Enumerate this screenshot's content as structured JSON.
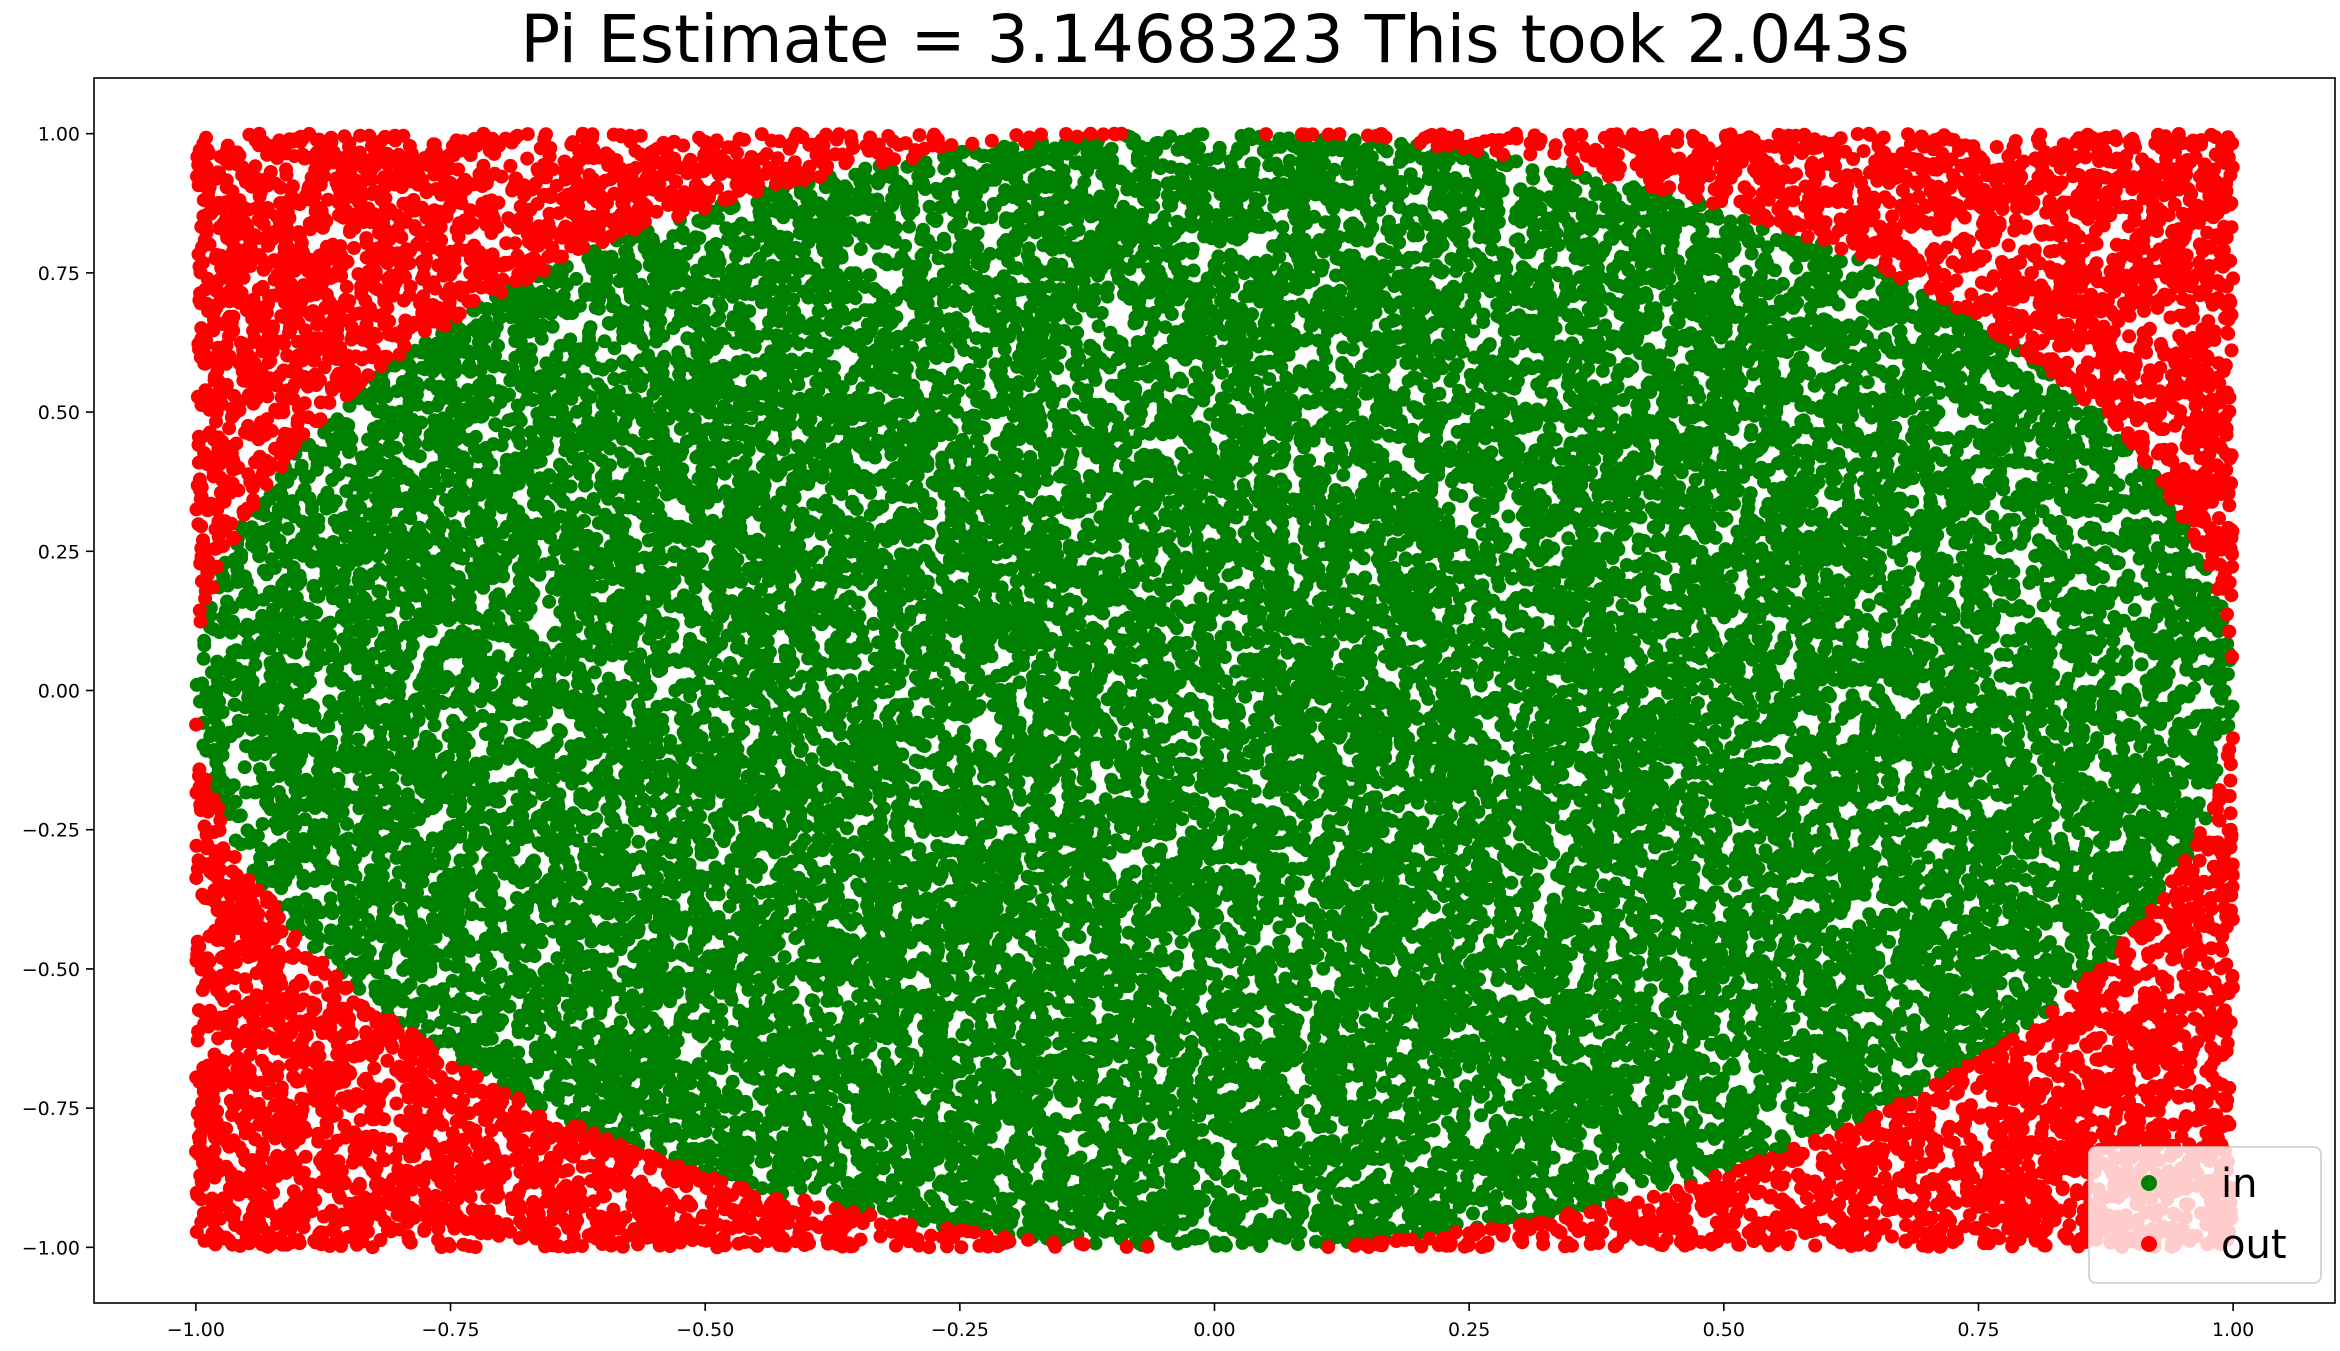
{
  "chart_data": {
    "type": "scatter",
    "title": "Pi Estimate = 3.1468323 This took 2.043s",
    "xlabel": "",
    "ylabel": "",
    "xlim": [
      -1.1,
      1.1
    ],
    "ylim": [
      -1.1,
      1.1
    ],
    "x_ticks": [
      -1.0,
      -0.75,
      -0.5,
      -0.25,
      0.0,
      0.25,
      0.5,
      0.75,
      1.0
    ],
    "y_ticks": [
      -1.0,
      -0.75,
      -0.5,
      -0.25,
      0.0,
      0.25,
      0.5,
      0.75,
      1.0
    ],
    "x_tick_labels": [
      "−1.00",
      "−0.75",
      "−0.50",
      "−0.25",
      "0.00",
      "0.25",
      "0.50",
      "0.75",
      "1.00"
    ],
    "y_tick_labels": [
      "−1.00",
      "−0.75",
      "−0.50",
      "−0.25",
      "0.00",
      "0.25",
      "0.50",
      "0.75",
      "1.00"
    ],
    "grid": false,
    "legend": {
      "placement": "lower-right",
      "entries": [
        {
          "label": "in",
          "color": "#008000"
        },
        {
          "label": "out",
          "color": "#ff0000"
        }
      ]
    },
    "series": [
      {
        "name": "in",
        "color": "#008000",
        "marker": "circle",
        "region": "points with x^2 + y^2 <= 1, x and y uniform in [-1, 1]"
      },
      {
        "name": "out",
        "color": "#ff0000",
        "marker": "circle",
        "region": "points with x^2 + y^2 > 1, x and y uniform in [-1, 1]"
      }
    ]
  }
}
